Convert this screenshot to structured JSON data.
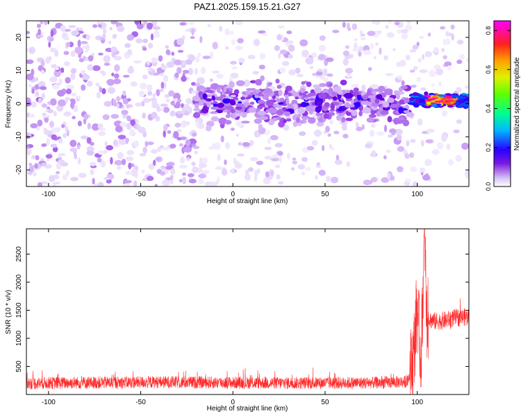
{
  "title": "PAZ1.2025.159.15.21.G27",
  "colors": {
    "snr_line": "#ff2a2a",
    "axis": "#000000",
    "colormap": [
      "#ffffff",
      "#e6d7fb",
      "#bf8cf2",
      "#8a2be2",
      "#6a00d8",
      "#2f00ff",
      "#0050ff",
      "#00c0ff",
      "#00ffb0",
      "#40ff00",
      "#c8ff00",
      "#ffd000",
      "#ff6000",
      "#ff1060",
      "#ff00ff"
    ]
  },
  "chart_data": [
    {
      "type": "heatmap",
      "name": "spectrogram",
      "title": "PAZ1.2025.159.15.21.G27",
      "xlabel": "Height of straight line (km)",
      "ylabel": "Frequency (Hz)",
      "xlim": [
        -112,
        128
      ],
      "ylim": [
        -25,
        25
      ],
      "xticks": [
        -100,
        -50,
        0,
        50,
        100
      ],
      "yticks": [
        -20,
        -10,
        0,
        10,
        20
      ],
      "colorbar": {
        "label": "Normalized spectral amplitude",
        "range": [
          0.0,
          0.85
        ],
        "ticks": [
          "0.0",
          "0.2",
          "0.4",
          "0.6",
          "0.8"
        ],
        "colormap": "rainbow (purple to magenta)"
      },
      "description_of_signal": {
        "noise_region_x": [
          -112,
          -20
        ],
        "band_start_x": -20,
        "band_center_freq": 0,
        "strong_signal_start_x": 97,
        "peak_amplitude_x": [
          105,
          120
        ],
        "peak_amplitude_value": 0.85
      }
    },
    {
      "type": "line",
      "name": "snr",
      "xlabel": "Height of straight line (km)",
      "ylabel": "SNR (10 * v/v)",
      "xlim": [
        -112,
        128
      ],
      "ylim": [
        0,
        2950
      ],
      "xticks": [
        -100,
        -50,
        0,
        50,
        100
      ],
      "yticks": [
        500,
        1000,
        1500,
        2000,
        2500
      ],
      "series": [
        {
          "x": [
            -112,
            -100,
            -80,
            -60,
            -40,
            -20,
            0,
            20,
            40,
            60,
            80,
            95,
            98,
            100,
            102,
            104,
            105,
            110,
            115,
            120,
            125,
            128
          ],
          "y": [
            200,
            205,
            210,
            215,
            220,
            215,
            210,
            205,
            205,
            205,
            210,
            230,
            700,
            1600,
            600,
            2950,
            1350,
            1300,
            1320,
            1360,
            1380,
            1370
          ]
        }
      ]
    }
  ]
}
